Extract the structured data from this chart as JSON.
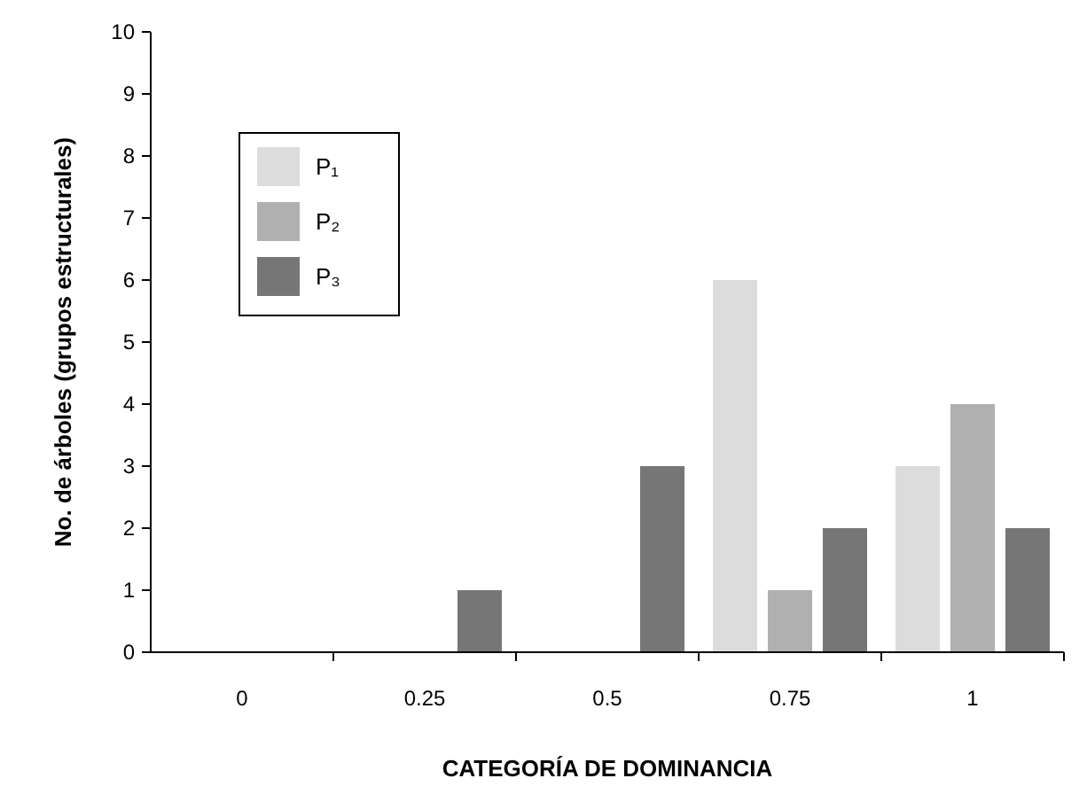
{
  "chart_data": {
    "type": "bar",
    "xlabel": "CATEGORÍA DE DOMINANCIA",
    "ylabel": "No. de árboles (grupos estructurales)",
    "categories": [
      "0",
      "0.25",
      "0.5",
      "0.75",
      "1"
    ],
    "series": [
      {
        "name": "P₁",
        "color": "#dcdcdc",
        "values": [
          0,
          0,
          0,
          6,
          3
        ]
      },
      {
        "name": "P₂",
        "color": "#b0b0b0",
        "values": [
          0,
          0,
          0,
          1,
          4
        ]
      },
      {
        "name": "P₃",
        "color": "#767676",
        "values": [
          0,
          1,
          3,
          2,
          2
        ]
      }
    ],
    "ylim": [
      0,
      10
    ],
    "yticks": [
      0,
      1,
      2,
      3,
      4,
      5,
      6,
      7,
      8,
      9,
      10
    ],
    "legend": "top left",
    "grid": false
  }
}
